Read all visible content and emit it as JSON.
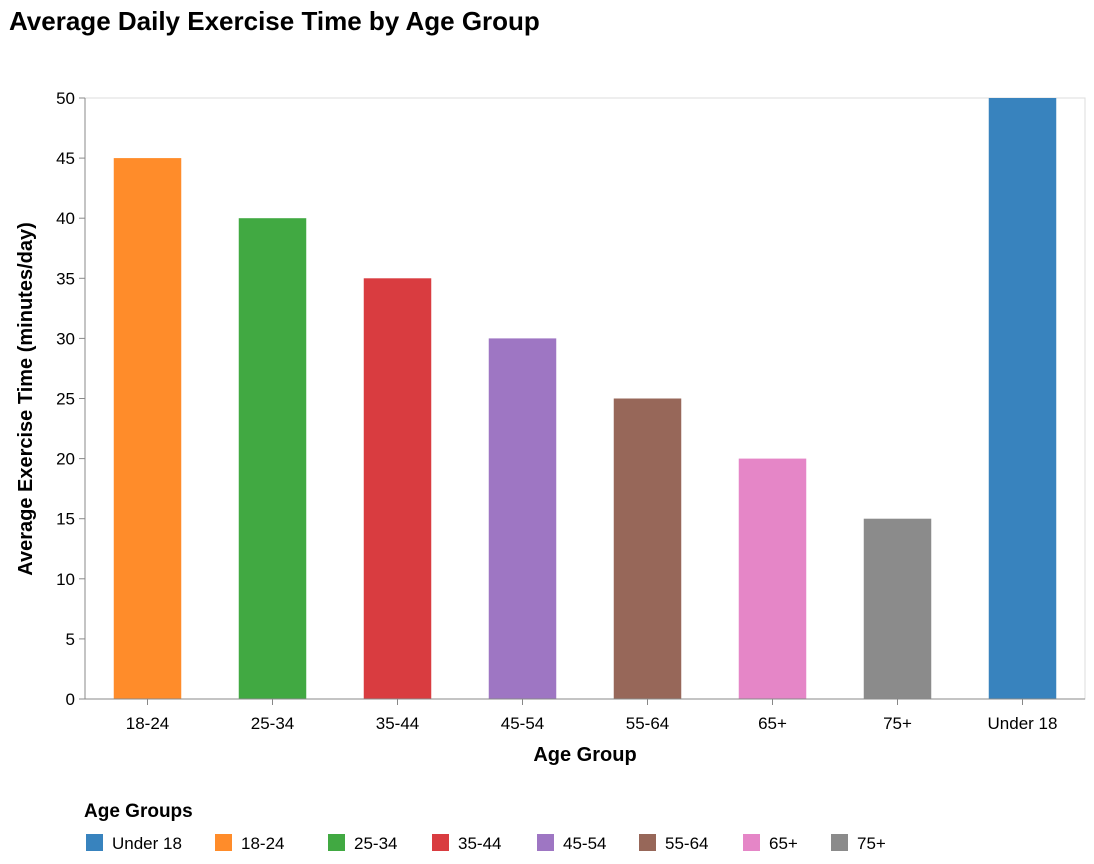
{
  "title": "Average Daily Exercise Time by Age Group",
  "chart_data": {
    "type": "bar",
    "title": "Average Daily Exercise Time by Age Group",
    "xlabel": "Age Group",
    "ylabel": "Average Exercise Time (minutes/day)",
    "categories": [
      "18-24",
      "25-34",
      "35-44",
      "45-54",
      "55-64",
      "65+",
      "75+",
      "Under 18"
    ],
    "values": [
      45,
      40,
      35,
      30,
      25,
      20,
      15,
      50
    ],
    "colors": [
      "#ff8c2a",
      "#41a942",
      "#d93c40",
      "#9e76c3",
      "#976759",
      "#e586c7",
      "#8b8b8b",
      "#3883be"
    ],
    "ylim": [
      0,
      50
    ],
    "yticks": [
      0,
      5,
      10,
      15,
      20,
      25,
      30,
      35,
      40,
      45,
      50
    ],
    "grid": false,
    "legend": {
      "title": "Age Groups",
      "placement": "bottom-left",
      "entries": [
        {
          "label": "Under 18",
          "color": "#3883be"
        },
        {
          "label": "18-24",
          "color": "#ff8c2a"
        },
        {
          "label": "25-34",
          "color": "#41a942"
        },
        {
          "label": "35-44",
          "color": "#d93c40"
        },
        {
          "label": "45-54",
          "color": "#9e76c3"
        },
        {
          "label": "55-64",
          "color": "#976759"
        },
        {
          "label": "65+",
          "color": "#e586c7"
        },
        {
          "label": "75+",
          "color": "#8b8b8b"
        }
      ]
    }
  }
}
